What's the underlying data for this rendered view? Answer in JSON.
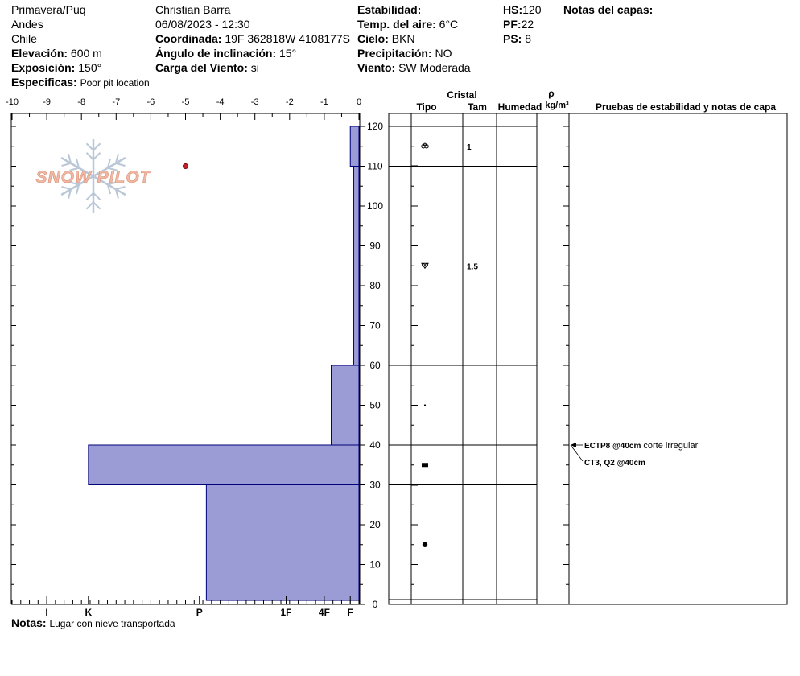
{
  "header": {
    "location": "Primavera/Puq",
    "range": "Andes",
    "country": "Chile",
    "elevation_label": "Elevación:",
    "elevation_value": "600 m",
    "aspect_label": "Exposición:",
    "aspect_value": "150°",
    "specifics_label": "Especificas:",
    "specifics_value": "Poor pit location",
    "observer": "Christian Barra",
    "datetime": "06/08/2023 - 12:30",
    "coord_label": "Coordinada:",
    "coord_value": "19F 362818W 4108177S",
    "slope_label": "Ángulo de inclinación:",
    "slope_value": "15°",
    "wind_load_label": "Carga del Viento:",
    "wind_load_value": "si",
    "stability_label": "Estabilidad:",
    "air_temp_label": "Temp. del aire:",
    "air_temp_value": "6°C",
    "sky_label": "Cielo:",
    "sky_value": "BKN",
    "precip_label": "Precipitación:",
    "precip_value": "NO",
    "wind_label": "Viento:",
    "wind_value": "SW Moderada",
    "hs_label": "HS:",
    "hs_value": "120",
    "pf_label": "PF:",
    "pf_value": "22",
    "ps_label": "PS:",
    "ps_value": "8",
    "layer_notes_label": "Notas del capas:"
  },
  "footer": {
    "notes_label": "Notas:",
    "notes_value": "Lugar con nieve  transportada"
  },
  "logo": {
    "text": "SNOW PILOT"
  },
  "table_headers": {
    "crystal": "Cristal",
    "type": "Tipo",
    "size": "Tam",
    "moisture": "Humedad",
    "rho": "ρ",
    "density_unit": "kg/m³",
    "stability_notes": "Pruebas de estabilidad y notas de capa"
  },
  "colors": {
    "hardness_fill": "#9b9bd6",
    "hardness_stroke": "#00007a",
    "temp_point": "#c0202a",
    "logo_fill": "#f0b9a6",
    "logo_snowflake": "#b9c7d6"
  },
  "chart_data": {
    "type": "bar",
    "title": "",
    "temperature_axis": {
      "range": [
        -10,
        0
      ],
      "ticks": [
        "-10",
        "-9",
        "-8",
        "-7",
        "-6",
        "-5",
        "-4",
        "-3",
        "-2",
        "-1",
        "0"
      ]
    },
    "depth_axis": {
      "range": [
        0,
        125
      ],
      "ticks": [
        "0",
        "10",
        "20",
        "30",
        "40",
        "50",
        "60",
        "70",
        "80",
        "90",
        "100",
        "110",
        "120"
      ]
    },
    "hardness_axis": {
      "labels": [
        "I",
        "K",
        "P",
        "1F",
        "4F",
        "F"
      ],
      "label_temp_positions": [
        -9,
        -7.8,
        -4.6,
        -2.1,
        -1,
        -0.25
      ]
    },
    "hardness_layers": [
      {
        "bottom": 110,
        "top": 120,
        "temp_equiv": -0.25
      },
      {
        "bottom": 60,
        "top": 110,
        "temp_equiv": -0.15
      },
      {
        "bottom": 40,
        "top": 60,
        "temp_equiv": -0.8
      },
      {
        "bottom": 30,
        "top": 40,
        "temp_equiv": -7.8
      },
      {
        "bottom": 1,
        "top": 30,
        "temp_equiv": -4.4
      }
    ],
    "temperature_points": [
      {
        "temp": -5,
        "depth": 110
      }
    ],
    "layer_boundaries": [
      1,
      30,
      40,
      60,
      110,
      120
    ],
    "crystals": [
      {
        "depth": 115,
        "size": "1",
        "symbol": "precipitation-particles-icon"
      },
      {
        "depth": 85,
        "size": "1.5",
        "symbol": "decomposing-fragments-icon"
      },
      {
        "depth": 50,
        "size": "",
        "symbol": "small-dot-icon"
      },
      {
        "depth": 35,
        "size": "",
        "symbol": "melt-freeze-crust-icon"
      },
      {
        "depth": 15,
        "size": "",
        "symbol": "rounded-grain-icon"
      }
    ],
    "stability_tests": [
      {
        "depth": 40,
        "label": "ECTP8 @40cm",
        "note": "corte irregular"
      },
      {
        "depth": 40,
        "label": "CT3, Q2 @40cm",
        "note": ""
      }
    ]
  }
}
